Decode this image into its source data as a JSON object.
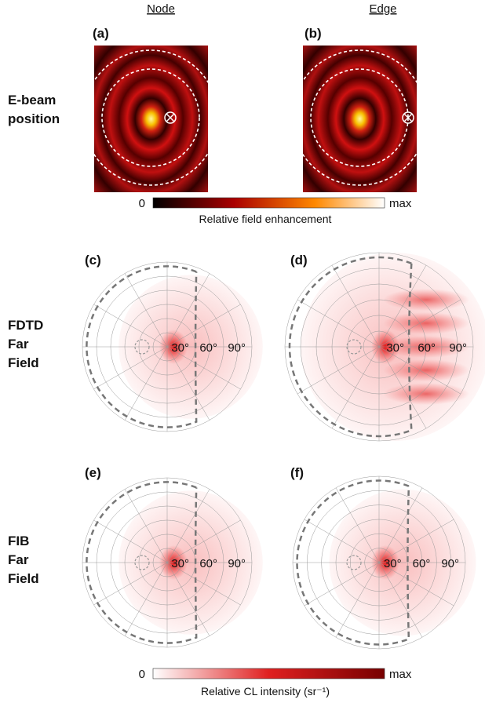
{
  "columns": [
    "Node",
    "Edge"
  ],
  "panels": {
    "a": "(a)",
    "b": "(b)",
    "c": "(c)",
    "d": "(d)",
    "e": "(e)",
    "f": "(f)"
  },
  "rows": [
    [
      "E-beam",
      "position"
    ],
    [
      "FDTD",
      "Far",
      "Field"
    ],
    [
      "FIB",
      "Far",
      "Field"
    ]
  ],
  "field_colorbar": {
    "min": "0",
    "max": "max",
    "label": "Relative field enhancement"
  },
  "polar_labels": [
    "30°",
    "60°",
    "90°"
  ],
  "cl_colorbar": {
    "min": "0",
    "max": "max",
    "label": "Relative CL intensity (sr⁻¹)"
  }
}
